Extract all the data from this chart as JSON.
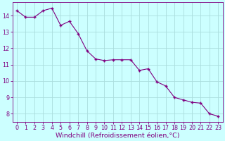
{
  "hours": [
    0,
    1,
    2,
    3,
    4,
    5,
    6,
    7,
    8,
    9,
    10,
    11,
    12,
    13,
    14,
    15,
    16,
    17,
    18,
    19,
    20,
    21,
    22,
    23
  ],
  "y": [
    14.3,
    13.9,
    13.9,
    14.3,
    14.45,
    13.4,
    13.65,
    12.9,
    11.85,
    11.35,
    11.25,
    11.3,
    11.3,
    11.3,
    10.65,
    10.75,
    9.95,
    9.7,
    9.0,
    8.85,
    8.7,
    8.65,
    8.0,
    7.85
  ],
  "line_color": "#800080",
  "marker_color": "#800080",
  "bg_color": "#ccffff",
  "grid_color": "#aadddd",
  "xlabel": "Windchill (Refroidissement éolien,°C)",
  "xlim": [
    -0.5,
    23.5
  ],
  "ylim": [
    7.5,
    14.8
  ],
  "yticks": [
    8,
    9,
    10,
    11,
    12,
    13,
    14
  ],
  "xticks": [
    0,
    1,
    2,
    3,
    4,
    5,
    6,
    7,
    8,
    9,
    10,
    11,
    12,
    13,
    14,
    15,
    16,
    17,
    18,
    19,
    20,
    21,
    22,
    23
  ],
  "tick_label_fontsize": 5.8,
  "xlabel_fontsize": 6.8
}
